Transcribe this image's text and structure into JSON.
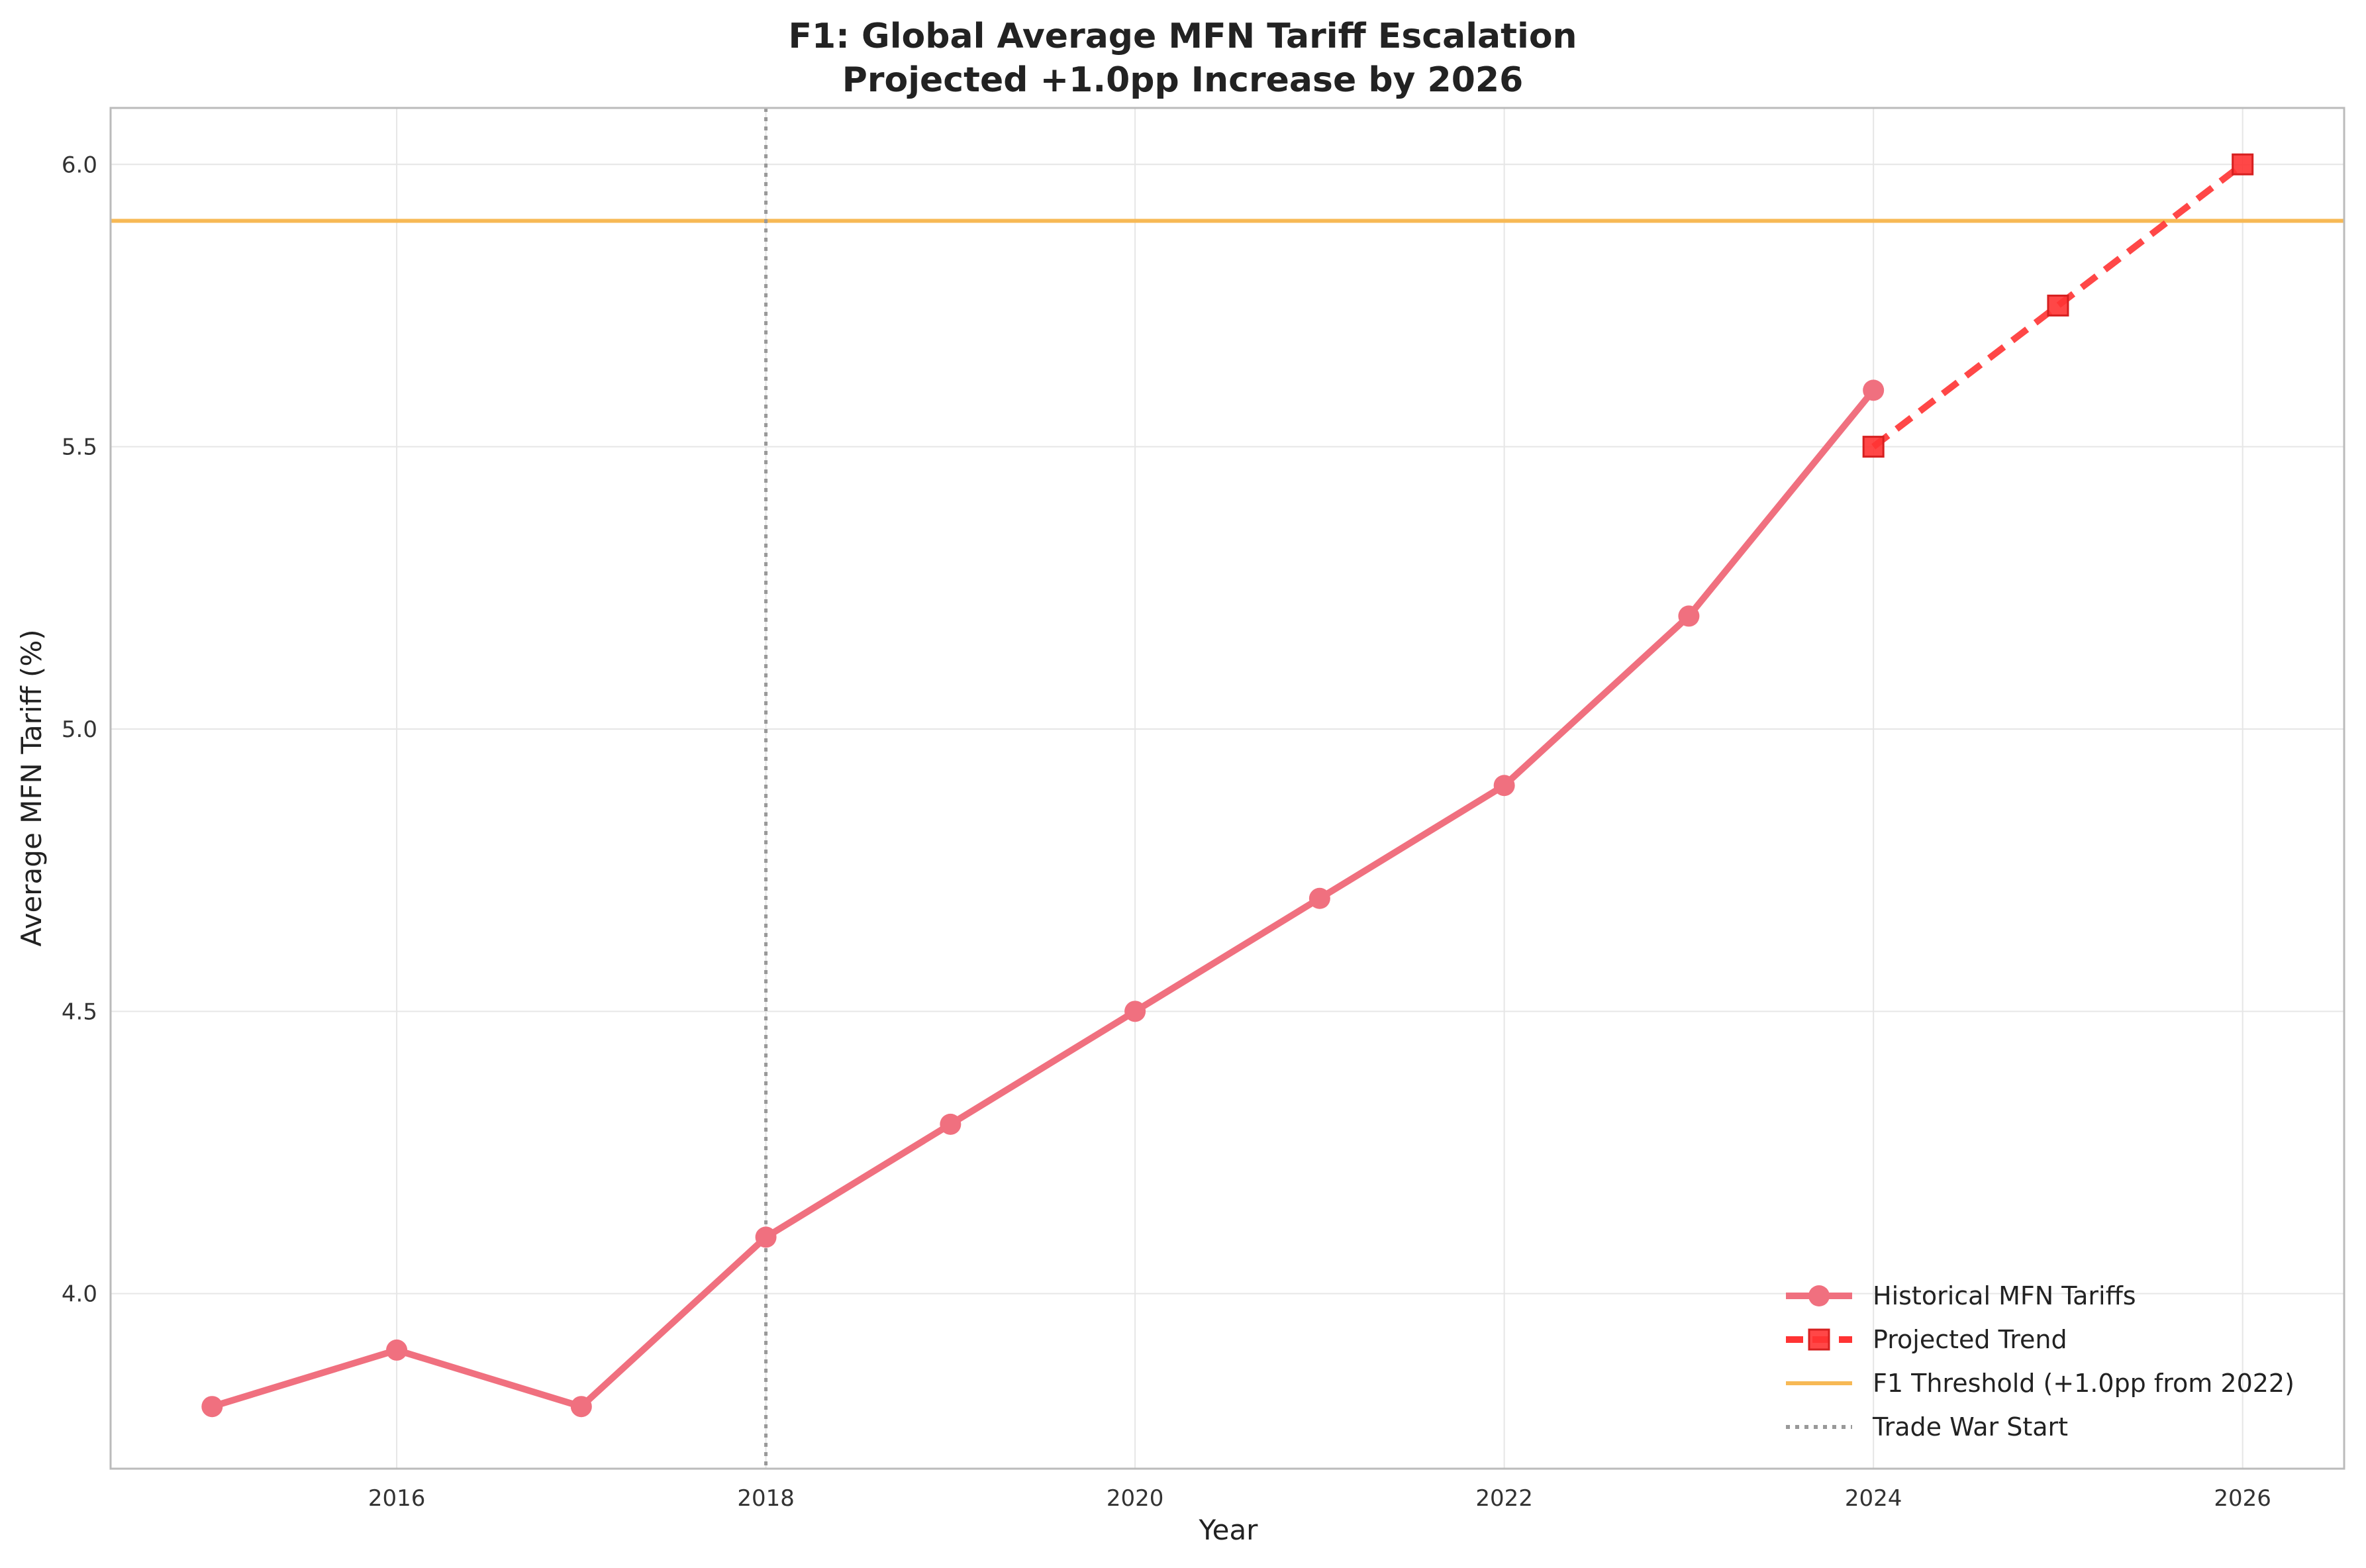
{
  "chart_data": {
    "type": "line",
    "title": "F1: Global Average MFN Tariff Escalation",
    "subtitle": "Projected +1.0pp Increase by 2026",
    "xlabel": "Year",
    "ylabel": "Average MFN Tariff (%)",
    "xlim": [
      2014.45,
      2026.55
    ],
    "ylim": [
      3.69,
      6.1
    ],
    "x_ticks": [
      2016,
      2018,
      2020,
      2022,
      2024,
      2026
    ],
    "y_ticks": [
      4.0,
      4.5,
      5.0,
      5.5,
      6.0
    ],
    "x_tick_labels": [
      "2016",
      "2018",
      "2020",
      "2022",
      "2024",
      "2026"
    ],
    "y_tick_labels": [
      "4.0",
      "4.5",
      "5.0",
      "5.5",
      "6.0"
    ],
    "grid": true,
    "legend_position": "bottom-right",
    "series": [
      {
        "name": "Historical MFN Tariffs",
        "color": "#f0707f",
        "marker": "circle",
        "line_style": "solid",
        "x": [
          2015,
          2016,
          2017,
          2018,
          2019,
          2020,
          2021,
          2022,
          2023,
          2024
        ],
        "y": [
          3.8,
          3.9,
          3.8,
          4.1,
          4.3,
          4.5,
          4.7,
          4.9,
          5.2,
          5.6
        ]
      },
      {
        "name": "Projected Trend",
        "color": "#ff3333",
        "marker": "square",
        "line_style": "dashed",
        "x": [
          2024,
          2025,
          2026
        ],
        "y": [
          5.5,
          5.75,
          6.0
        ]
      }
    ],
    "reference_lines": [
      {
        "name": "F1 Threshold (+1.0pp from 2022)",
        "orientation": "horizontal",
        "value": 5.9,
        "color": "#f7b955",
        "line_style": "solid"
      },
      {
        "name": "Trade War Start",
        "orientation": "vertical",
        "value": 2018,
        "color": "#999999",
        "line_style": "dotted"
      }
    ]
  }
}
